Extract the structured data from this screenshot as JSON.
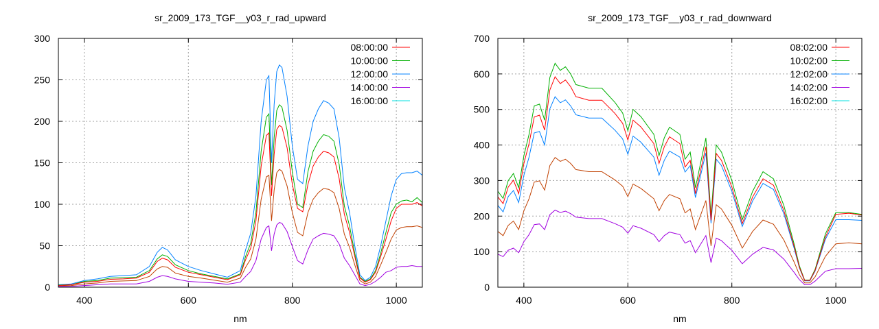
{
  "chart_data": [
    {
      "type": "line",
      "title": "sr_2009_173_TGF__y03_r_rad_upward",
      "xlabel": "nm",
      "ylabel": "",
      "xlim": [
        350,
        1050
      ],
      "ylim": [
        0,
        300
      ],
      "xticks": [
        400,
        600,
        800,
        1000
      ],
      "yticks": [
        0,
        50,
        100,
        150,
        200,
        250,
        300
      ],
      "grid": true,
      "legend_position": "top-right",
      "x": [
        350,
        375,
        400,
        425,
        450,
        475,
        500,
        525,
        540,
        550,
        560,
        575,
        600,
        625,
        650,
        675,
        700,
        710,
        720,
        730,
        740,
        750,
        755,
        760,
        765,
        770,
        775,
        780,
        790,
        800,
        810,
        820,
        830,
        840,
        850,
        860,
        870,
        880,
        890,
        900,
        910,
        920,
        930,
        940,
        950,
        960,
        970,
        980,
        990,
        1000,
        1010,
        1020,
        1030,
        1040,
        1050
      ],
      "series": [
        {
          "name": "08:00:00",
          "legend_color": "#ff0000",
          "line_color": "#ff0000",
          "values": [
            2,
            3,
            6,
            7,
            9.5,
            10,
            11,
            18,
            31,
            35,
            33,
            24,
            18,
            15,
            12,
            9,
            15,
            33,
            47,
            80,
            146,
            183,
            186,
            110,
            160,
            190,
            195,
            193,
            168,
            124,
            95,
            91,
            124,
            146,
            157,
            164,
            162,
            157,
            131,
            88,
            66,
            37,
            11,
            6,
            9,
            18,
            37,
            58,
            80,
            95,
            100,
            100,
            100,
            102,
            98
          ]
        },
        {
          "name": "10:00:00",
          "legend_color": "#00b000",
          "line_color": "#00b000",
          "values": [
            2.5,
            3,
            7,
            8,
            11,
            11.5,
            12,
            20,
            34,
            39,
            37,
            27,
            20,
            16,
            13,
            10,
            16,
            37,
            53,
            90,
            164,
            205,
            209,
            123,
            180,
            213,
            220,
            217,
            189,
            139,
            100,
            96,
            139,
            164,
            176,
            184,
            182,
            176,
            148,
            98,
            74,
            41,
            12,
            7,
            10,
            20,
            41,
            66,
            90,
            100,
            104,
            105,
            103,
            108,
            102
          ]
        },
        {
          "name": "12:00:00",
          "legend_color": "#0080ff",
          "line_color": "#0080ff",
          "values": [
            3,
            4,
            8,
            10,
            13,
            14,
            15,
            25,
            42,
            48,
            45,
            33,
            25,
            20,
            16,
            12,
            20,
            45,
            65,
            110,
            200,
            250,
            255,
            150,
            220,
            260,
            268,
            265,
            230,
            170,
            130,
            125,
            170,
            200,
            215,
            225,
            222,
            215,
            180,
            120,
            90,
            50,
            15,
            8,
            12,
            25,
            50,
            80,
            110,
            130,
            137,
            138,
            138,
            140,
            135
          ]
        },
        {
          "name": "14:00:00",
          "legend_color": "#a000e0",
          "line_color": "#a000e0",
          "values": [
            1,
            1,
            2,
            3,
            4,
            4,
            4,
            7,
            12,
            14,
            13,
            10,
            7,
            6,
            5,
            3.5,
            6,
            13,
            19,
            32,
            58,
            72,
            74,
            44,
            64,
            75,
            78,
            77,
            67,
            49,
            32,
            28,
            45,
            58,
            62,
            65,
            64,
            62,
            52,
            35,
            26,
            15,
            4,
            2,
            3.5,
            7,
            12,
            18,
            20,
            24,
            25,
            25,
            26,
            25,
            25
          ]
        },
        {
          "name": "16:00:00",
          "legend_color": "#00e0e0",
          "line_color": "#c04000",
          "values": [
            1.5,
            2,
            4,
            5,
            7,
            7.5,
            8,
            13,
            22,
            25,
            24,
            17,
            13,
            11,
            8.5,
            6,
            11,
            24,
            34,
            58,
            106,
            133,
            135,
            80,
            117,
            138,
            142,
            140,
            122,
            90,
            66,
            62,
            90,
            106,
            114,
            119,
            118,
            114,
            95,
            64,
            48,
            27,
            8,
            4,
            6,
            13,
            27,
            42,
            58,
            69,
            72,
            73,
            73,
            74,
            72
          ]
        }
      ]
    },
    {
      "type": "line",
      "title": "sr_2009_173_TGF__y03_r_rad_downward",
      "xlabel": "nm",
      "ylabel": "",
      "xlim": [
        350,
        1050
      ],
      "ylim": [
        0,
        700
      ],
      "xticks": [
        400,
        600,
        800,
        1000
      ],
      "yticks": [
        0,
        100,
        200,
        300,
        400,
        500,
        600,
        700
      ],
      "grid": true,
      "legend_position": "top-right",
      "x": [
        350,
        360,
        370,
        380,
        390,
        400,
        410,
        420,
        430,
        440,
        450,
        460,
        470,
        480,
        490,
        500,
        525,
        550,
        575,
        590,
        600,
        610,
        625,
        650,
        660,
        670,
        680,
        700,
        710,
        720,
        730,
        740,
        750,
        760,
        770,
        780,
        790,
        800,
        820,
        840,
        860,
        880,
        900,
        920,
        930,
        940,
        950,
        960,
        980,
        1000,
        1025,
        1050
      ],
      "series": [
        {
          "name": "08:02:00",
          "legend_color": "#ff0000",
          "line_color": "#ff0000",
          "values": [
            254,
            235,
            282,
            301,
            263,
            348,
            404,
            479,
            484,
            442,
            555,
            592,
            573,
            583,
            564,
            536,
            526,
            526,
            489,
            461,
            414,
            470,
            451,
            404,
            348,
            395,
            423,
            404,
            338,
            357,
            263,
            329,
            395,
            188,
            376,
            357,
            320,
            282,
            179,
            254,
            305,
            287,
            216,
            113,
            56,
            19,
            19,
            47,
            141,
            205,
            208,
            203
          ]
        },
        {
          "name": "10:02:00",
          "legend_color": "#00b000",
          "line_color": "#00b000",
          "values": [
            270,
            250,
            300,
            320,
            280,
            370,
            430,
            510,
            515,
            470,
            590,
            630,
            610,
            620,
            600,
            570,
            560,
            560,
            520,
            490,
            440,
            500,
            480,
            430,
            370,
            420,
            450,
            430,
            360,
            380,
            280,
            350,
            420,
            200,
            400,
            380,
            340,
            300,
            190,
            270,
            325,
            305,
            230,
            120,
            60,
            20,
            20,
            50,
            150,
            210,
            210,
            205
          ]
        },
        {
          "name": "12:02:00",
          "legend_color": "#0080ff",
          "line_color": "#0080ff",
          "values": [
            230,
            212,
            255,
            272,
            238,
            315,
            366,
            434,
            438,
            400,
            502,
            536,
            519,
            527,
            510,
            485,
            476,
            476,
            442,
            417,
            374,
            425,
            408,
            366,
            315,
            357,
            383,
            366,
            324,
            342,
            252,
            315,
            378,
            180,
            360,
            342,
            306,
            270,
            171,
            243,
            292,
            275,
            207,
            108,
            54,
            18,
            18,
            45,
            135,
            190,
            190,
            188
          ]
        },
        {
          "name": "14:02:00",
          "legend_color": "#a000e0",
          "line_color": "#a000e0",
          "values": [
            93,
            86,
            104,
            110,
            97,
            128,
            148,
            176,
            178,
            162,
            204,
            217,
            210,
            214,
            207,
            197,
            193,
            193,
            179,
            169,
            152,
            173,
            166,
            148,
            128,
            145,
            155,
            148,
            124,
            131,
            97,
            121,
            145,
            69,
            138,
            131,
            117,
            104,
            66,
            93,
            112,
            105,
            79,
            41,
            21,
            7,
            7,
            17,
            45,
            52,
            52,
            53
          ]
        },
        {
          "name": "16:02:00",
          "legend_color": "#00e0e0",
          "line_color": "#c04000",
          "values": [
            157,
            145,
            174,
            186,
            162,
            215,
            249,
            296,
            299,
            273,
            342,
            365,
            354,
            360,
            348,
            331,
            325,
            325,
            302,
            284,
            255,
            290,
            278,
            249,
            215,
            244,
            261,
            249,
            209,
            220,
            162,
            203,
            244,
            116,
            232,
            220,
            197,
            174,
            110,
            157,
            189,
            177,
            133,
            70,
            35,
            12,
            12,
            29,
            87,
            122,
            125,
            122
          ]
        }
      ]
    }
  ]
}
